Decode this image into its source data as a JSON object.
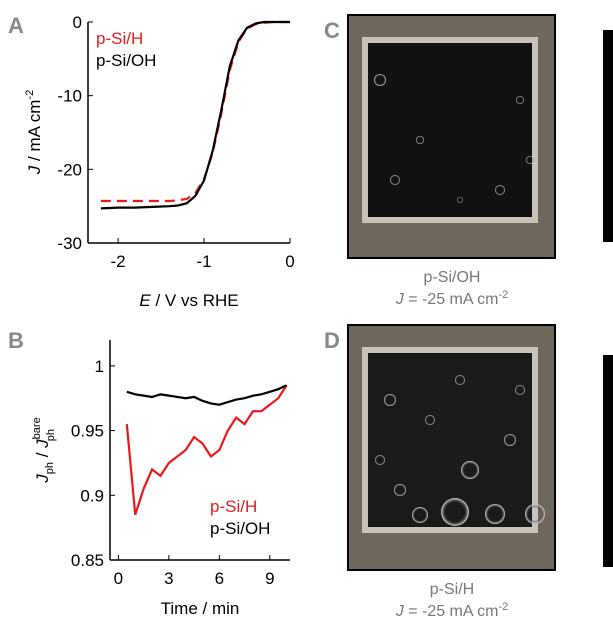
{
  "chart_data": [
    {
      "type": "line",
      "panel_label": "A",
      "xlabel_parts": [
        "E",
        " / V vs RHE"
      ],
      "ylabel_parts": [
        "J",
        " / mA cm",
        "-2"
      ],
      "xlim": [
        -2.35,
        0
      ],
      "ylim": [
        -30,
        0
      ],
      "xticks": [
        -2,
        -1,
        0
      ],
      "yticks": [
        0,
        -10,
        -20,
        -30
      ],
      "legend": "top-left",
      "x": [
        -2.2,
        -2.0,
        -1.8,
        -1.6,
        -1.4,
        -1.3,
        -1.2,
        -1.1,
        -1.0,
        -0.9,
        -0.8,
        -0.7,
        -0.6,
        -0.5,
        -0.4,
        -0.3,
        -0.2,
        -0.1,
        0
      ],
      "series": [
        {
          "name": "p-Si/H",
          "color": "#e8191c",
          "dash": true,
          "values": [
            -24.3,
            -24.3,
            -24.3,
            -24.3,
            -24.3,
            -24.2,
            -24.0,
            -23.2,
            -21.3,
            -17.8,
            -12.5,
            -6.5,
            -2.7,
            -0.9,
            -0.3,
            -0.1,
            0,
            0,
            0
          ]
        },
        {
          "name": "p-Si/OH",
          "color": "#000000",
          "dash": false,
          "values": [
            -25.3,
            -25.2,
            -25.2,
            -25.1,
            -25.0,
            -24.9,
            -24.6,
            -23.6,
            -21.5,
            -17.5,
            -12.0,
            -6.0,
            -2.5,
            -0.8,
            -0.2,
            0,
            0,
            0,
            0
          ]
        }
      ]
    },
    {
      "type": "line",
      "panel_label": "B",
      "xlabel_parts": [
        "Time / min"
      ],
      "ylabel_parts": [
        "J",
        "ph",
        " / ",
        "J",
        "bare",
        "ph"
      ],
      "xlim": [
        -0.5,
        10.2
      ],
      "ylim": [
        0.85,
        1.02
      ],
      "xticks": [
        0,
        3,
        6,
        9
      ],
      "yticks": [
        0.85,
        0.9,
        0.95,
        1
      ],
      "legend": "bottom-right",
      "x": [
        0.5,
        1,
        1.5,
        2,
        2.5,
        3,
        3.5,
        4,
        4.5,
        5,
        5.5,
        6,
        6.5,
        7,
        7.5,
        8,
        8.5,
        9,
        9.5,
        10
      ],
      "series": [
        {
          "name": "p-Si/H",
          "color": "#e8191c",
          "dash": false,
          "values": [
            0.955,
            0.885,
            0.905,
            0.92,
            0.915,
            0.925,
            0.93,
            0.935,
            0.945,
            0.94,
            0.93,
            0.935,
            0.95,
            0.96,
            0.955,
            0.965,
            0.965,
            0.97,
            0.975,
            0.985
          ]
        },
        {
          "name": "p-Si/OH",
          "color": "#000000",
          "dash": false,
          "values": [
            0.98,
            0.978,
            0.977,
            0.976,
            0.978,
            0.977,
            0.976,
            0.975,
            0.976,
            0.973,
            0.971,
            0.97,
            0.972,
            0.974,
            0.975,
            0.977,
            0.978,
            0.98,
            0.982,
            0.985
          ]
        }
      ]
    }
  ],
  "photos": [
    {
      "panel_label": "C",
      "caption": "p-Si/OH",
      "current_parts": [
        "J",
        " = -25 mA cm",
        "-2"
      ]
    },
    {
      "panel_label": "D",
      "caption": "p-Si/H",
      "current_parts": [
        "J",
        " = -25 mA cm",
        "-2"
      ]
    }
  ]
}
